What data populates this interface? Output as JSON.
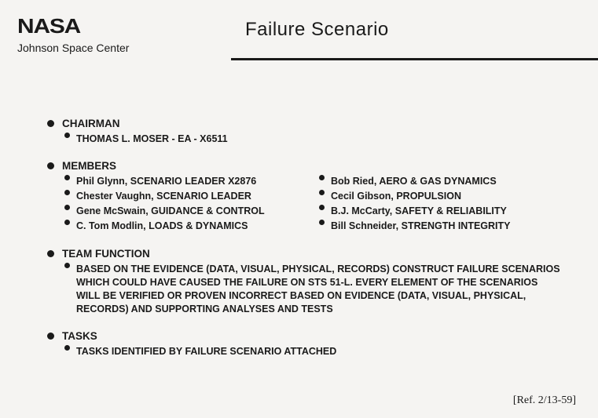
{
  "header": {
    "logo_text": "NASA",
    "subtitle": "Johnson Space Center",
    "title": "Failure Scenario"
  },
  "sections": {
    "chairman": {
      "label": "CHAIRMAN",
      "item": "THOMAS L. MOSER - EA - X6511"
    },
    "members": {
      "label": "MEMBERS",
      "left": [
        "Phil Glynn, SCENARIO LEADER X2876",
        "Chester Vaughn, SCENARIO LEADER",
        "Gene McSwain, GUIDANCE & CONTROL",
        "C. Tom Modlin, LOADS & DYNAMICS"
      ],
      "right": [
        "Bob Ried, AERO & GAS DYNAMICS",
        "Cecil Gibson, PROPULSION",
        "B.J. McCarty, SAFETY & RELIABILITY",
        "Bill Schneider, STRENGTH INTEGRITY"
      ]
    },
    "team_function": {
      "label": "TEAM FUNCTION",
      "text": "BASED ON THE EVIDENCE (DATA, VISUAL, PHYSICAL, RECORDS) CONSTRUCT FAILURE SCENARIOS WHICH COULD HAVE CAUSED THE FAILURE ON STS 51-L. EVERY ELEMENT OF THE SCENARIOS WILL BE VERIFIED OR PROVEN INCORRECT BASED ON EVIDENCE (DATA, VISUAL, PHYSICAL, RECORDS) AND SUPPORTING ANALYSES AND TESTS"
    },
    "tasks": {
      "label": "TASKS",
      "item": "TASKS IDENTIFIED BY FAILURE SCENARIO ATTACHED"
    }
  },
  "reference": "[Ref. 2/13-59]"
}
